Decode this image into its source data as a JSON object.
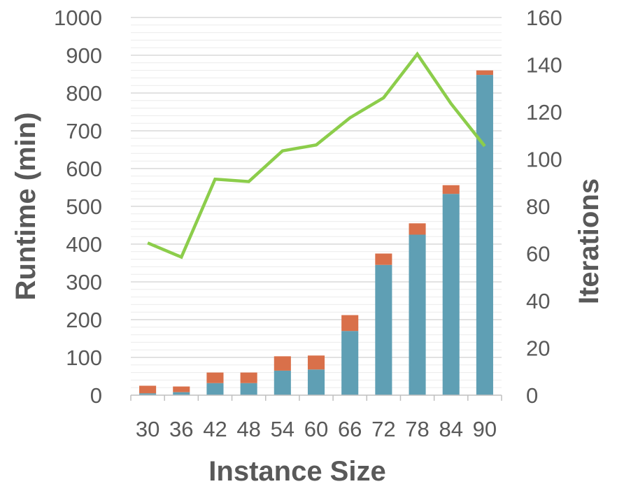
{
  "chart_data": {
    "type": "bar",
    "categories": [
      "30",
      "36",
      "42",
      "48",
      "54",
      "60",
      "66",
      "72",
      "78",
      "84",
      "90"
    ],
    "xlabel": "Instance Size",
    "ylabel": "Runtime (min)",
    "y2label": "Iterations",
    "ylim": [
      0,
      1000
    ],
    "y2lim": [
      0,
      160
    ],
    "yticks": [
      "0",
      "100",
      "200",
      "300",
      "400",
      "500",
      "600",
      "700",
      "800",
      "900",
      "1000"
    ],
    "y2ticks": [
      "0",
      "20",
      "40",
      "60",
      "80",
      "100",
      "120",
      "140",
      "160"
    ],
    "grid": true,
    "legend": "none",
    "stacked": true,
    "series": [
      {
        "kind": "bar",
        "axis": "left",
        "color": "#5f9fb4",
        "values": [
          5,
          8,
          32,
          32,
          65,
          68,
          170,
          345,
          425,
          533,
          848
        ]
      },
      {
        "kind": "bar",
        "axis": "left",
        "color": "#d9704a",
        "values": [
          20,
          15,
          28,
          28,
          38,
          37,
          42,
          30,
          30,
          23,
          12
        ]
      },
      {
        "kind": "line",
        "axis": "right",
        "color": "#8ccd4b",
        "values": [
          64.5,
          58.5,
          91.5,
          90.5,
          103.5,
          106,
          117.5,
          126,
          144.5,
          123.5,
          105.5
        ]
      }
    ]
  }
}
